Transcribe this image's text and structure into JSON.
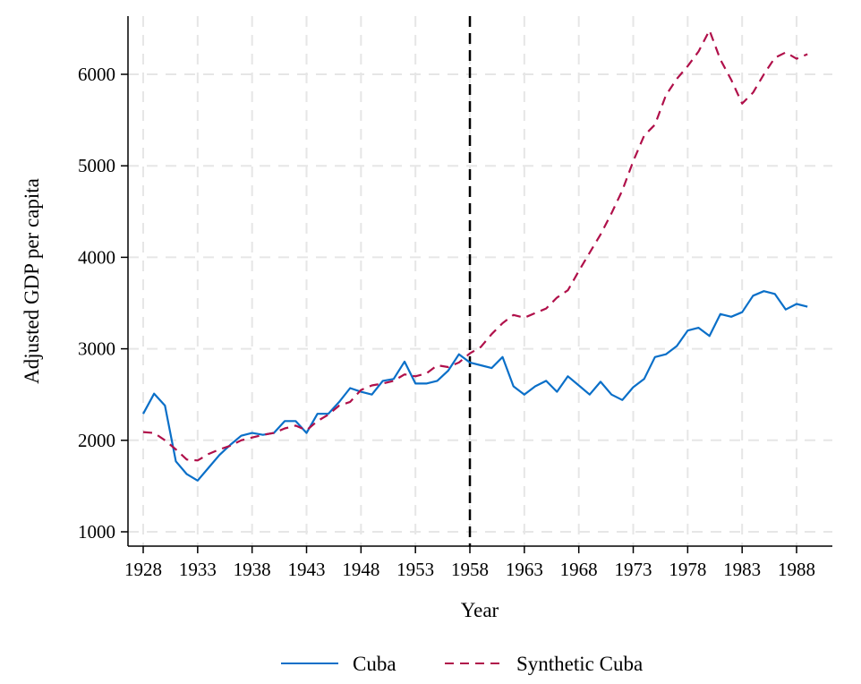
{
  "chart_data": {
    "type": "line",
    "title": "",
    "xlabel": "Year",
    "ylabel": "Adjusted GDP per capita",
    "xlim": [
      1926.5,
      1992
    ],
    "ylim": [
      830,
      6600
    ],
    "x_ticks": [
      1928,
      1933,
      1938,
      1943,
      1948,
      1953,
      1958,
      1963,
      1968,
      1973,
      1978,
      1983,
      1988
    ],
    "y_ticks": [
      1000,
      2000,
      3000,
      4000,
      5000,
      6000
    ],
    "grid": true,
    "legend_position": "bottom",
    "reference_line": {
      "x": 1958,
      "style": "dashed",
      "color": "#000000"
    },
    "x": [
      1928,
      1929,
      1930,
      1931,
      1932,
      1933,
      1934,
      1935,
      1936,
      1937,
      1938,
      1939,
      1940,
      1941,
      1942,
      1943,
      1944,
      1945,
      1946,
      1947,
      1948,
      1949,
      1950,
      1951,
      1952,
      1953,
      1954,
      1955,
      1956,
      1957,
      1958,
      1959,
      1960,
      1961,
      1962,
      1963,
      1964,
      1965,
      1966,
      1967,
      1968,
      1969,
      1970,
      1971,
      1972,
      1973,
      1974,
      1975,
      1976,
      1977,
      1978,
      1979,
      1980,
      1981,
      1982,
      1983,
      1984,
      1985,
      1986,
      1987,
      1988,
      1989
    ],
    "series": [
      {
        "name": "Cuba",
        "color": "#0a6fc8",
        "style": "solid",
        "values": [
          2290,
          2510,
          2380,
          1770,
          1630,
          1560,
          1700,
          1840,
          1950,
          2050,
          2080,
          2060,
          2080,
          2210,
          2210,
          2080,
          2290,
          2290,
          2420,
          2570,
          2530,
          2500,
          2650,
          2670,
          2860,
          2620,
          2620,
          2650,
          2760,
          2940,
          2850,
          2820,
          2790,
          2910,
          2590,
          2500,
          2590,
          2650,
          2530,
          2700,
          2600,
          2500,
          2640,
          2500,
          2440,
          2580,
          2670,
          2910,
          2940,
          3030,
          3200,
          3230,
          3140,
          3380,
          3350,
          3400,
          3580,
          3630,
          3600,
          3430,
          3490,
          3460
        ]
      },
      {
        "name": "Synthetic Cuba",
        "color": "#b0104a",
        "style": "dashed",
        "values": [
          2090,
          2080,
          2000,
          1900,
          1790,
          1780,
          1850,
          1900,
          1940,
          2000,
          2030,
          2060,
          2080,
          2130,
          2160,
          2110,
          2210,
          2280,
          2380,
          2420,
          2550,
          2600,
          2620,
          2650,
          2720,
          2700,
          2730,
          2820,
          2800,
          2850,
          2950,
          3020,
          3160,
          3280,
          3370,
          3340,
          3390,
          3440,
          3560,
          3640,
          3850,
          4050,
          4250,
          4480,
          4730,
          5050,
          5330,
          5450,
          5770,
          5950,
          6090,
          6250,
          6480,
          6160,
          5940,
          5680,
          5800,
          6000,
          6180,
          6240,
          6170,
          6220
        ]
      }
    ]
  }
}
